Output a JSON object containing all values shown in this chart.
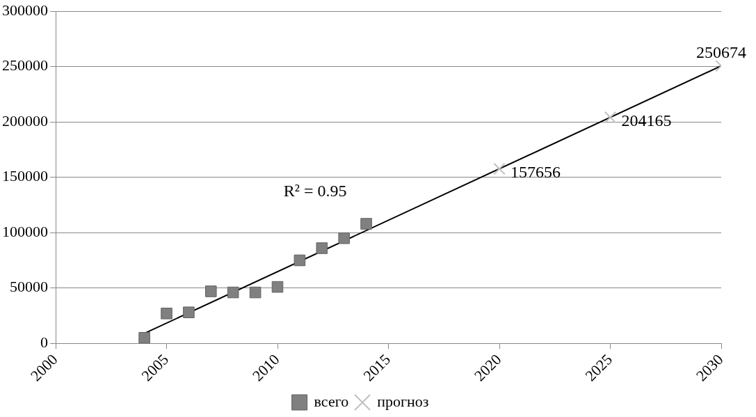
{
  "chart_data": {
    "type": "scatter",
    "xlim": [
      2000,
      2030
    ],
    "xticks": [
      2000,
      2005,
      2010,
      2015,
      2020,
      2025,
      2030
    ],
    "ylim": [
      0,
      300000
    ],
    "yticks": [
      0,
      50000,
      100000,
      150000,
      200000,
      250000,
      300000
    ],
    "grid": "y",
    "legend": "bottom",
    "series": [
      {
        "name": "всего",
        "color": "#808080",
        "marker": "square",
        "x": [
          2004,
          2005,
          2006,
          2007,
          2008,
          2009,
          2010,
          2011,
          2012,
          2013,
          2014
        ],
        "values": [
          5000,
          27000,
          28000,
          47000,
          46000,
          46000,
          51000,
          75000,
          86000,
          95000,
          108000
        ]
      },
      {
        "name": "прогноз",
        "color": "#c0c0c0",
        "marker": "cross",
        "x": [
          2020,
          2025,
          2030
        ],
        "values": [
          157656,
          204165,
          250674
        ],
        "value_labels": [
          "157656",
          "204165",
          "250674"
        ]
      },
      {
        "type": "line",
        "color": "#000000",
        "marker": "none",
        "x": [
          2004,
          2030
        ],
        "values": [
          9000,
          250674
        ]
      }
    ],
    "annotations": [
      "R² = 0.95"
    ]
  }
}
